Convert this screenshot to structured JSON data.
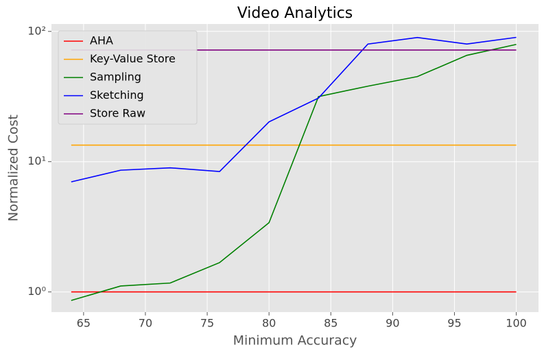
{
  "chart_data": {
    "type": "line",
    "title": "Video Analytics",
    "x_label": "Minimum Accuracy",
    "y_label": "Normalized Cost",
    "x": [
      64,
      68,
      72,
      76,
      80,
      84,
      88,
      92,
      96,
      100
    ],
    "series": [
      {
        "name": "AHA",
        "color": "#ff0000",
        "values": [
          1,
          1,
          1,
          1,
          1,
          1,
          1,
          1,
          1,
          1
        ]
      },
      {
        "name": "Key-Value Store",
        "color": "#ffa500",
        "values": [
          13.4,
          13.4,
          13.4,
          13.4,
          13.4,
          13.4,
          13.4,
          13.4,
          13.4,
          13.4
        ]
      },
      {
        "name": "Sampling",
        "color": "#008000",
        "values": [
          0.86,
          1.11,
          1.17,
          1.68,
          3.4,
          31.6,
          38,
          45,
          65.5,
          79.5
        ]
      },
      {
        "name": "Sketching",
        "color": "#0000ff",
        "values": [
          7.0,
          8.6,
          8.97,
          8.4,
          20.2,
          30.8,
          80,
          89.8,
          80,
          90
        ]
      },
      {
        "name": "Store Raw",
        "color": "#800080",
        "values": [
          72,
          72,
          72,
          72,
          72,
          72,
          72,
          72,
          72,
          72
        ]
      }
    ],
    "xlim": [
      62.4,
      101.8
    ],
    "xticks": [
      65,
      70,
      75,
      80,
      85,
      90,
      95,
      100
    ],
    "ylim": [
      0.7,
      114
    ],
    "y_scale": "log",
    "yticks": [
      {
        "value": 1,
        "label": "10⁰"
      },
      {
        "value": 10,
        "label": "10¹"
      },
      {
        "value": 100,
        "label": "10²"
      }
    ],
    "grid": true,
    "legend_position": "upper left"
  }
}
